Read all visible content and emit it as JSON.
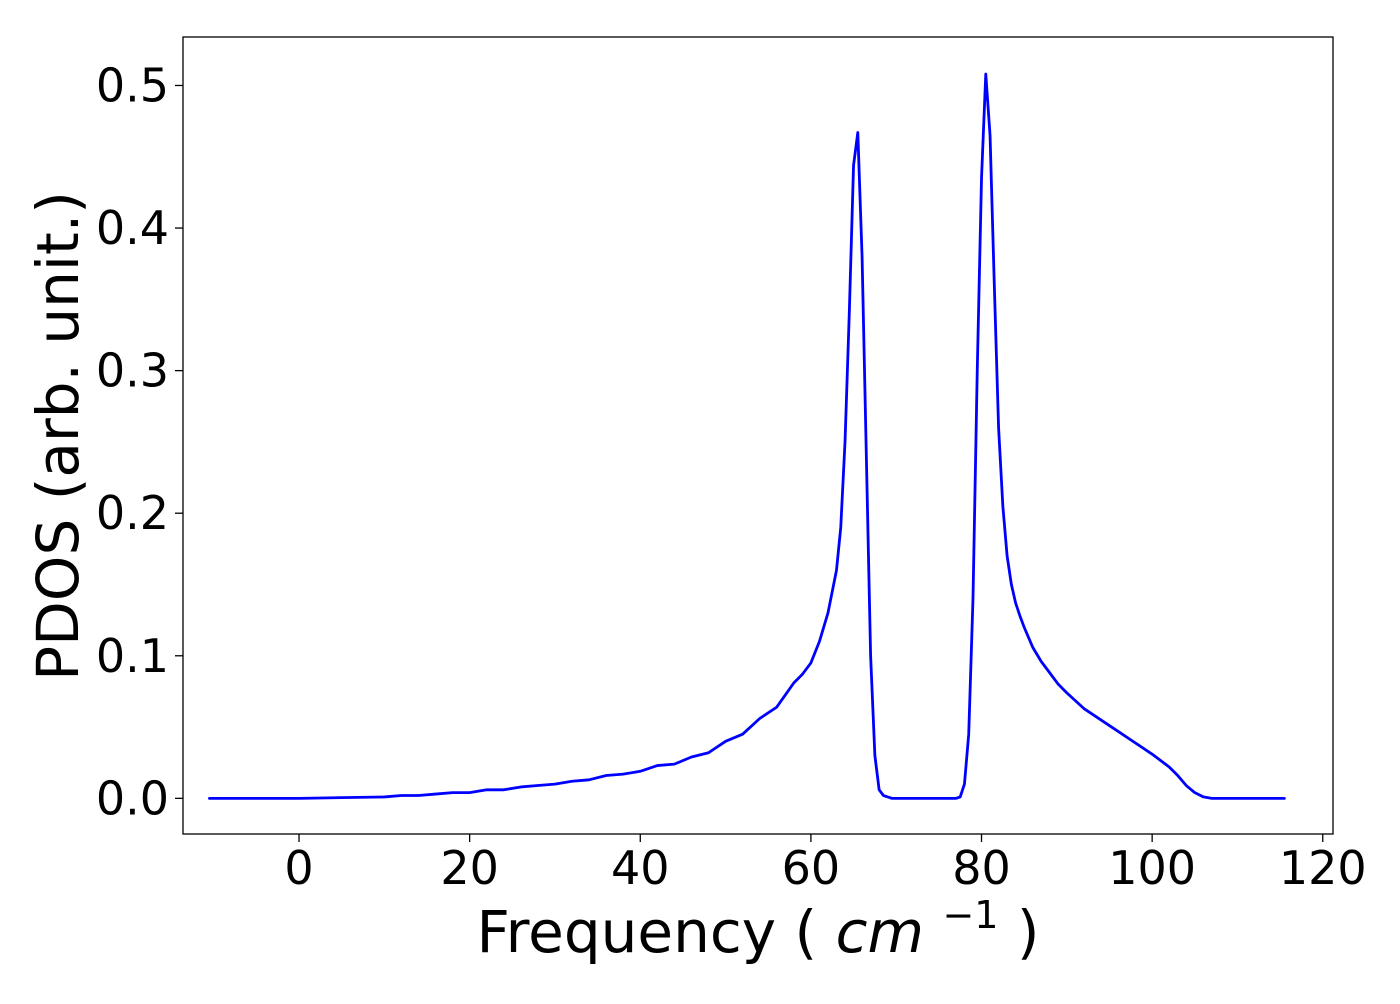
{
  "chart_data": {
    "type": "line",
    "title": "",
    "xlabel": "Frequency",
    "xlabel_unit_base": "cm",
    "xlabel_unit_exp": "−1",
    "ylabel": "PDOS (arb. unit.)",
    "xlim": [
      -13.6,
      121.2
    ],
    "ylim": [
      -0.025,
      0.534
    ],
    "grid": false,
    "x_ticks": [
      0,
      20,
      40,
      60,
      80,
      100,
      120
    ],
    "x_tick_labels": [
      "0",
      "20",
      "40",
      "60",
      "80",
      "100",
      "120"
    ],
    "y_ticks": [
      0.0,
      0.1,
      0.2,
      0.3,
      0.4,
      0.5
    ],
    "y_tick_labels": [
      "0.0",
      "0.1",
      "0.2",
      "0.3",
      "0.4",
      "0.5"
    ],
    "series": [
      {
        "color": "#0000ff",
        "x": [
          -10.5,
          0,
          5,
          10,
          12,
          14,
          16,
          18,
          20,
          22,
          24,
          26,
          28,
          30,
          32,
          34,
          36,
          38,
          40,
          42,
          44,
          46,
          48,
          50,
          52,
          54,
          56,
          58,
          59,
          60,
          61,
          62,
          63,
          63.5,
          64,
          64.5,
          65,
          65.5,
          66,
          66.5,
          67,
          67.5,
          68,
          68.5,
          69,
          69.5,
          70,
          71,
          75,
          77,
          77.5,
          78,
          78.5,
          79,
          79.5,
          80,
          80.5,
          81,
          81.5,
          82,
          82.5,
          83,
          83.5,
          84,
          84.5,
          85,
          86,
          87,
          88,
          89,
          90,
          92,
          94,
          96,
          98,
          100,
          102,
          103,
          104,
          105,
          106,
          107,
          110,
          115.5
        ],
        "y": [
          0.0,
          0.0,
          0.0005,
          0.001,
          0.002,
          0.002,
          0.003,
          0.004,
          0.004,
          0.006,
          0.006,
          0.008,
          0.009,
          0.01,
          0.012,
          0.013,
          0.016,
          0.017,
          0.019,
          0.023,
          0.024,
          0.029,
          0.032,
          0.04,
          0.045,
          0.056,
          0.064,
          0.081,
          0.087,
          0.095,
          0.11,
          0.13,
          0.16,
          0.19,
          0.25,
          0.34,
          0.444,
          0.467,
          0.38,
          0.24,
          0.1,
          0.03,
          0.006,
          0.002,
          0.001,
          0.0,
          0.0,
          0.0,
          0.0,
          0.0,
          0.001,
          0.01,
          0.045,
          0.14,
          0.3,
          0.435,
          0.508,
          0.465,
          0.36,
          0.26,
          0.205,
          0.17,
          0.15,
          0.137,
          0.128,
          0.12,
          0.106,
          0.096,
          0.088,
          0.08,
          0.074,
          0.063,
          0.055,
          0.047,
          0.039,
          0.031,
          0.022,
          0.016,
          0.009,
          0.004,
          0.001,
          0.0,
          0.0,
          0.0
        ]
      }
    ]
  }
}
